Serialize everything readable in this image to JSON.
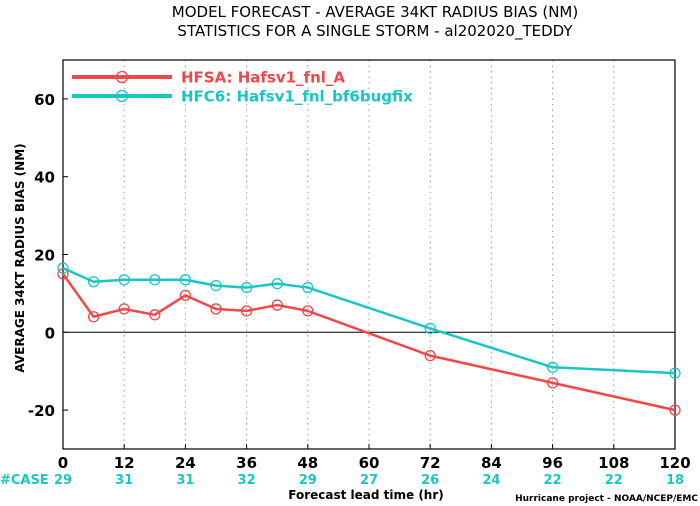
{
  "chart_data": {
    "type": "line",
    "title": "MODEL FORECAST - AVERAGE 34KT RADIUS BIAS (NM)",
    "subtitle": "STATISTICS FOR A SINGLE STORM - al202020_TEDDY",
    "xlabel": "Forecast lead time (hr)",
    "ylabel": "AVERAGE 34KT RADIUS BIAS (NM)",
    "xlim": [
      0,
      120
    ],
    "ylim": [
      -30,
      70
    ],
    "x_ticks": [
      0,
      12,
      24,
      36,
      48,
      60,
      72,
      84,
      96,
      108,
      120
    ],
    "y_ticks": [
      -20,
      0,
      20,
      40,
      60
    ],
    "grid": true,
    "legend_position": "top-left",
    "series": [
      {
        "name": "HFSA: Hafsv1_fnl_A",
        "color": "#f0484a",
        "x": [
          0,
          6,
          12,
          18,
          24,
          30,
          36,
          42,
          48,
          72,
          96,
          120
        ],
        "values": [
          15,
          4,
          6,
          4.5,
          9.5,
          6,
          5.5,
          7,
          5.5,
          -6,
          -13,
          -20
        ]
      },
      {
        "name": "HFC6: Hafsv1_fnl_bf6bugfix",
        "color": "#18c7c2",
        "x": [
          0,
          6,
          12,
          18,
          24,
          30,
          36,
          42,
          48,
          72,
          96,
          120
        ],
        "values": [
          16.5,
          13,
          13.5,
          13.5,
          13.5,
          12,
          11.5,
          12.5,
          11.5,
          1,
          -9,
          -10.5
        ]
      }
    ],
    "case_label": "#CASE",
    "case_ticks": [
      0,
      12,
      24,
      36,
      48,
      60,
      72,
      84,
      96,
      108,
      120
    ],
    "case_counts": [
      29,
      31,
      31,
      32,
      29,
      27,
      26,
      24,
      22,
      22,
      18
    ],
    "case_color": "#18c7c2",
    "case_label_color": "#18c7c2",
    "credit": "Hurricane project - NOAA/NCEP/EMC"
  }
}
